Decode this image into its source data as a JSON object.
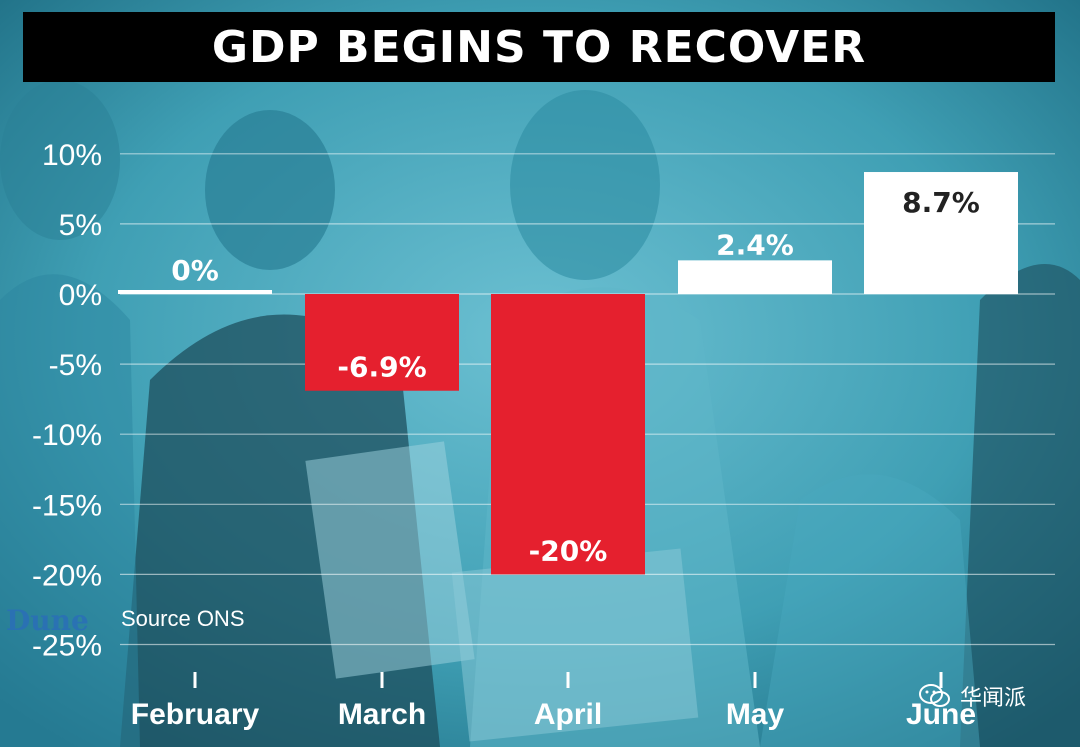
{
  "title": "GDP BEGINS TO RECOVER",
  "source_label": "Source ONS",
  "background_logo": "Dune",
  "watermark": {
    "icon": "wechat-icon",
    "text": "华闻派"
  },
  "colors": {
    "background": "#3f9fb4",
    "negative_bar": "#e5202e",
    "positive_bar": "#ffffff",
    "negative_label": "#ffffff",
    "positive_label": "#222222",
    "title_bar": "#000000"
  },
  "chart_data": {
    "type": "bar",
    "categories": [
      "February",
      "March",
      "April",
      "May",
      "June"
    ],
    "values": [
      0,
      -6.9,
      -20,
      2.4,
      8.7
    ],
    "value_labels": [
      "0%",
      "-6.9%",
      "-20%",
      "2.4%",
      "8.7%"
    ],
    "yticks": [
      "10%",
      "5%",
      "0%",
      "-5%",
      "-10%",
      "-15%",
      "-20%",
      "-25%"
    ],
    "ytick_values": [
      10,
      5,
      0,
      -5,
      -10,
      -15,
      -20,
      -25
    ],
    "ylim": [
      -25,
      10
    ],
    "grid": true,
    "title": "GDP BEGINS TO RECOVER",
    "xlabel": "",
    "ylabel": ""
  }
}
